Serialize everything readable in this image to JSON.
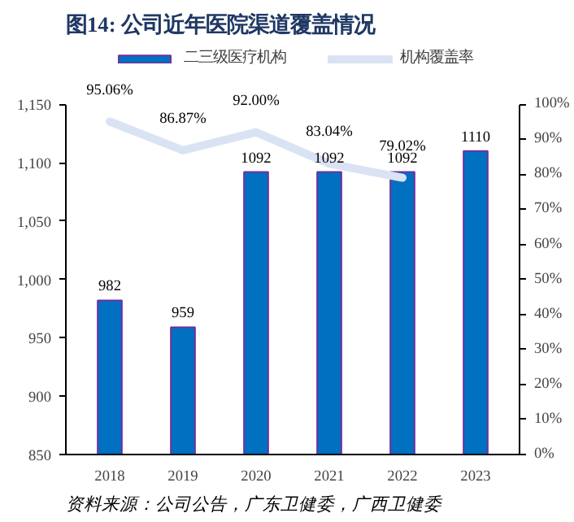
{
  "chart_data": {
    "type": "bar",
    "title": "图14: 公司近年医院渠道覆盖情况",
    "categories": [
      "2018",
      "2019",
      "2020",
      "2021",
      "2022",
      "2023"
    ],
    "series": [
      {
        "name": "二三级医疗机构",
        "color": "#0070c0",
        "values": [
          982,
          959,
          1092,
          1092,
          1092,
          1110
        ],
        "value_labels": [
          "982",
          "959",
          "1092",
          "1092",
          "1092",
          "1110"
        ]
      },
      {
        "name": "机构覆盖率",
        "type": "line",
        "axis": "y2",
        "color": "#dae3f3",
        "values": [
          95.06,
          86.87,
          92.0,
          83.04,
          79.02,
          null
        ],
        "value_labels": [
          "95.06%",
          "86.87%",
          "92.00%",
          "83.04%",
          "79.02%",
          null
        ]
      }
    ],
    "ylim": [
      850,
      1150
    ],
    "yticks": [
      {
        "value": 850,
        "label": "850"
      },
      {
        "value": 900,
        "label": "900"
      },
      {
        "value": 950,
        "label": "950"
      },
      {
        "value": 1000,
        "label": "1,000"
      },
      {
        "value": 1050,
        "label": "1,050"
      },
      {
        "value": 1100,
        "label": "1,100"
      },
      {
        "value": 1150,
        "label": "1,150"
      }
    ],
    "y2lim": [
      0,
      100
    ],
    "y2ticks": [
      {
        "value": 0,
        "label": "0%"
      },
      {
        "value": 10,
        "label": "10%"
      },
      {
        "value": 20,
        "label": "20%"
      },
      {
        "value": 30,
        "label": "30%"
      },
      {
        "value": 40,
        "label": "40%"
      },
      {
        "value": 50,
        "label": "50%"
      },
      {
        "value": 60,
        "label": "60%"
      },
      {
        "value": 70,
        "label": "70%"
      },
      {
        "value": 80,
        "label": "80%"
      },
      {
        "value": 90,
        "label": "90%"
      },
      {
        "value": 100,
        "label": "100%"
      }
    ],
    "legend": "top",
    "grid": false,
    "line_style": "solid",
    "annotations": [
      "资料来源：公司公告，广东卫健委，广西卫健委"
    ]
  }
}
